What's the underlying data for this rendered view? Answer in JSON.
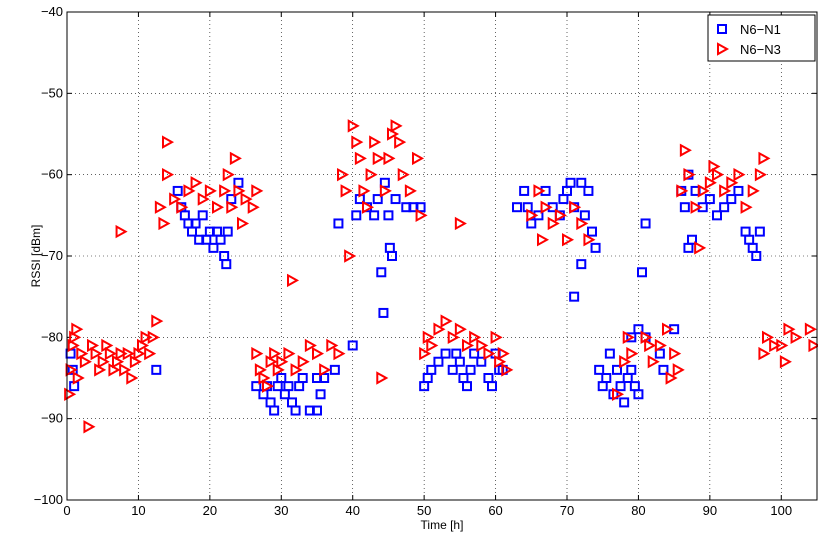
{
  "chart_data": {
    "type": "scatter",
    "title": "",
    "xlabel": "Time [h]",
    "ylabel": "RSSI [dBm]",
    "xlim": [
      0,
      105
    ],
    "ylim": [
      -100,
      -40
    ],
    "xticks": [
      0,
      10,
      20,
      30,
      40,
      50,
      60,
      70,
      80,
      90,
      100
    ],
    "yticks": [
      -100,
      -90,
      -80,
      -70,
      -60,
      -50,
      -40
    ],
    "grid": true,
    "legend_position": "top-right",
    "series": [
      {
        "name": "N6−N1",
        "marker": "square",
        "color": "#0000ff",
        "points": [
          [
            0.5,
            -82
          ],
          [
            0.8,
            -84
          ],
          [
            1.0,
            -86
          ],
          [
            12.5,
            -84
          ],
          [
            15.5,
            -62
          ],
          [
            16,
            -64
          ],
          [
            16.5,
            -65
          ],
          [
            17,
            -66
          ],
          [
            17.5,
            -67
          ],
          [
            18,
            -66
          ],
          [
            18.5,
            -68
          ],
          [
            19,
            -65
          ],
          [
            19.5,
            -68
          ],
          [
            20,
            -67
          ],
          [
            20.5,
            -69
          ],
          [
            21,
            -67
          ],
          [
            21.5,
            -68
          ],
          [
            22,
            -70
          ],
          [
            22.3,
            -71
          ],
          [
            22.5,
            -67
          ],
          [
            23,
            -63
          ],
          [
            24,
            -61
          ],
          [
            26.5,
            -86
          ],
          [
            27.5,
            -87
          ],
          [
            28,
            -86
          ],
          [
            28.5,
            -88
          ],
          [
            29,
            -89
          ],
          [
            29.5,
            -86
          ],
          [
            30,
            -85
          ],
          [
            30.5,
            -87
          ],
          [
            31,
            -86
          ],
          [
            31.5,
            -88
          ],
          [
            32,
            -89
          ],
          [
            32.5,
            -86
          ],
          [
            33,
            -85
          ],
          [
            34,
            -89
          ],
          [
            35,
            -89
          ],
          [
            35.5,
            -87
          ],
          [
            35,
            -85
          ],
          [
            36,
            -85
          ],
          [
            37.5,
            -84
          ],
          [
            40,
            -81
          ],
          [
            38,
            -66
          ],
          [
            40.5,
            -65
          ],
          [
            41,
            -63
          ],
          [
            42,
            -64
          ],
          [
            43,
            -65
          ],
          [
            43.5,
            -63
          ],
          [
            44,
            -72
          ],
          [
            44.3,
            -77
          ],
          [
            44.5,
            -61
          ],
          [
            45,
            -65
          ],
          [
            45.2,
            -69
          ],
          [
            45.5,
            -70
          ],
          [
            46,
            -63
          ],
          [
            47.5,
            -64
          ],
          [
            48.5,
            -64
          ],
          [
            49.5,
            -64
          ],
          [
            50,
            -86
          ],
          [
            50.5,
            -85
          ],
          [
            51,
            -84
          ],
          [
            52,
            -83
          ],
          [
            53,
            -82
          ],
          [
            54,
            -84
          ],
          [
            54.5,
            -82
          ],
          [
            55,
            -83
          ],
          [
            55.5,
            -85
          ],
          [
            56,
            -86
          ],
          [
            56.5,
            -84
          ],
          [
            57,
            -82
          ],
          [
            58,
            -83
          ],
          [
            59,
            -85
          ],
          [
            59.5,
            -86
          ],
          [
            60,
            -82
          ],
          [
            60.5,
            -84
          ],
          [
            61,
            -84
          ],
          [
            63,
            -64
          ],
          [
            64,
            -62
          ],
          [
            64.5,
            -64
          ],
          [
            65,
            -66
          ],
          [
            66,
            -65
          ],
          [
            67,
            -62
          ],
          [
            68,
            -64
          ],
          [
            69,
            -65
          ],
          [
            69.5,
            -63
          ],
          [
            70,
            -62
          ],
          [
            70.5,
            -61
          ],
          [
            71,
            -64
          ],
          [
            71,
            -75
          ],
          [
            72,
            -61
          ],
          [
            72.5,
            -65
          ],
          [
            73,
            -62
          ],
          [
            73.5,
            -67
          ],
          [
            74,
            -69
          ],
          [
            72,
            -71
          ],
          [
            74.5,
            -84
          ],
          [
            75,
            -86
          ],
          [
            75.5,
            -85
          ],
          [
            76,
            -82
          ],
          [
            76.5,
            -87
          ],
          [
            77,
            -84
          ],
          [
            77.5,
            -86
          ],
          [
            78,
            -88
          ],
          [
            78.5,
            -85
          ],
          [
            79,
            -84
          ],
          [
            79.5,
            -86
          ],
          [
            80,
            -87
          ],
          [
            79,
            -80
          ],
          [
            80,
            -79
          ],
          [
            81,
            -80
          ],
          [
            80.5,
            -72
          ],
          [
            81,
            -66
          ],
          [
            83,
            -82
          ],
          [
            83.5,
            -84
          ],
          [
            85,
            -79
          ],
          [
            86,
            -62
          ],
          [
            86.5,
            -64
          ],
          [
            87,
            -60
          ],
          [
            87,
            -69
          ],
          [
            87.5,
            -68
          ],
          [
            88,
            -62
          ],
          [
            89,
            -64
          ],
          [
            90,
            -63
          ],
          [
            91,
            -65
          ],
          [
            92,
            -64
          ],
          [
            93,
            -63
          ],
          [
            94,
            -62
          ],
          [
            95,
            -67
          ],
          [
            95.5,
            -68
          ],
          [
            96,
            -69
          ],
          [
            96.5,
            -70
          ],
          [
            97,
            -67
          ]
        ]
      },
      {
        "name": "N6−N3",
        "marker": "triangle-right",
        "color": "#ff0000",
        "points": [
          [
            0.3,
            -87
          ],
          [
            0.5,
            -84
          ],
          [
            0.8,
            -81
          ],
          [
            1,
            -80
          ],
          [
            1.3,
            -79
          ],
          [
            1.5,
            -85
          ],
          [
            2,
            -82
          ],
          [
            2.5,
            -83
          ],
          [
            3,
            -91
          ],
          [
            3.5,
            -81
          ],
          [
            4,
            -82
          ],
          [
            4.5,
            -84
          ],
          [
            5,
            -83
          ],
          [
            5.5,
            -81
          ],
          [
            6,
            -82
          ],
          [
            6.5,
            -84
          ],
          [
            7,
            -83
          ],
          [
            7.5,
            -82
          ],
          [
            8,
            -84
          ],
          [
            8.5,
            -82
          ],
          [
            9,
            -85
          ],
          [
            9.5,
            -83
          ],
          [
            10,
            -82
          ],
          [
            10.5,
            -81
          ],
          [
            11,
            -80
          ],
          [
            11.5,
            -82
          ],
          [
            12,
            -80
          ],
          [
            12.5,
            -78
          ],
          [
            7.5,
            -67
          ],
          [
            13,
            -64
          ],
          [
            13.5,
            -66
          ],
          [
            14,
            -60
          ],
          [
            14,
            -56
          ],
          [
            15,
            -63
          ],
          [
            16,
            -64
          ],
          [
            17,
            -62
          ],
          [
            18,
            -61
          ],
          [
            19,
            -63
          ],
          [
            20,
            -62
          ],
          [
            21,
            -64
          ],
          [
            22,
            -62
          ],
          [
            22.5,
            -60
          ],
          [
            23,
            -64
          ],
          [
            23.5,
            -58
          ],
          [
            24,
            -62
          ],
          [
            24.5,
            -66
          ],
          [
            25,
            -63
          ],
          [
            26,
            -64
          ],
          [
            26.5,
            -62
          ],
          [
            26.5,
            -82
          ],
          [
            27,
            -84
          ],
          [
            27.5,
            -85
          ],
          [
            28,
            -86
          ],
          [
            28.5,
            -83
          ],
          [
            29,
            -82
          ],
          [
            29.5,
            -84
          ],
          [
            30,
            -83
          ],
          [
            31,
            -82
          ],
          [
            31.5,
            -73
          ],
          [
            32,
            -84
          ],
          [
            33,
            -83
          ],
          [
            34,
            -81
          ],
          [
            35,
            -82
          ],
          [
            36,
            -84
          ],
          [
            37,
            -81
          ],
          [
            38,
            -82
          ],
          [
            38.5,
            -60
          ],
          [
            39,
            -62
          ],
          [
            39.5,
            -70
          ],
          [
            40,
            -54
          ],
          [
            40.5,
            -56
          ],
          [
            41,
            -58
          ],
          [
            41.5,
            -62
          ],
          [
            42,
            -64
          ],
          [
            42.5,
            -60
          ],
          [
            43,
            -56
          ],
          [
            43.5,
            -58
          ],
          [
            44,
            -85
          ],
          [
            44.5,
            -62
          ],
          [
            45,
            -58
          ],
          [
            45.5,
            -55
          ],
          [
            46,
            -54
          ],
          [
            46.5,
            -56
          ],
          [
            47,
            -60
          ],
          [
            48,
            -62
          ],
          [
            49,
            -58
          ],
          [
            49.5,
            -65
          ],
          [
            50,
            -82
          ],
          [
            50.5,
            -80
          ],
          [
            51,
            -81
          ],
          [
            52,
            -79
          ],
          [
            53,
            -78
          ],
          [
            54,
            -80
          ],
          [
            55,
            -79
          ],
          [
            56,
            -81
          ],
          [
            57,
            -80
          ],
          [
            58,
            -81
          ],
          [
            59,
            -82
          ],
          [
            60,
            -80
          ],
          [
            60.5,
            -83
          ],
          [
            61,
            -82
          ],
          [
            61.5,
            -84
          ],
          [
            55,
            -66
          ],
          [
            65,
            -65
          ],
          [
            66,
            -62
          ],
          [
            66.5,
            -68
          ],
          [
            67,
            -64
          ],
          [
            68,
            -66
          ],
          [
            69,
            -65
          ],
          [
            70,
            -68
          ],
          [
            71,
            -64
          ],
          [
            72,
            -66
          ],
          [
            73,
            -68
          ],
          [
            77,
            -87
          ],
          [
            78,
            -83
          ],
          [
            78.5,
            -80
          ],
          [
            79,
            -82
          ],
          [
            81,
            -80
          ],
          [
            81.5,
            -81
          ],
          [
            82,
            -83
          ],
          [
            83,
            -81
          ],
          [
            84,
            -79
          ],
          [
            84.5,
            -85
          ],
          [
            85,
            -82
          ],
          [
            85.5,
            -84
          ],
          [
            86,
            -62
          ],
          [
            86.5,
            -57
          ],
          [
            87,
            -60
          ],
          [
            88,
            -64
          ],
          [
            88.5,
            -69
          ],
          [
            89,
            -62
          ],
          [
            90,
            -61
          ],
          [
            90.5,
            -59
          ],
          [
            91,
            -60
          ],
          [
            92,
            -62
          ],
          [
            93,
            -61
          ],
          [
            94,
            -60
          ],
          [
            95,
            -64
          ],
          [
            96,
            -62
          ],
          [
            97,
            -60
          ],
          [
            97.5,
            -58
          ],
          [
            97.5,
            -82
          ],
          [
            98,
            -80
          ],
          [
            99,
            -81
          ],
          [
            100,
            -81
          ],
          [
            100.5,
            -83
          ],
          [
            101,
            -79
          ],
          [
            102,
            -80
          ],
          [
            104,
            -79
          ],
          [
            104.5,
            -81
          ]
        ]
      }
    ]
  }
}
